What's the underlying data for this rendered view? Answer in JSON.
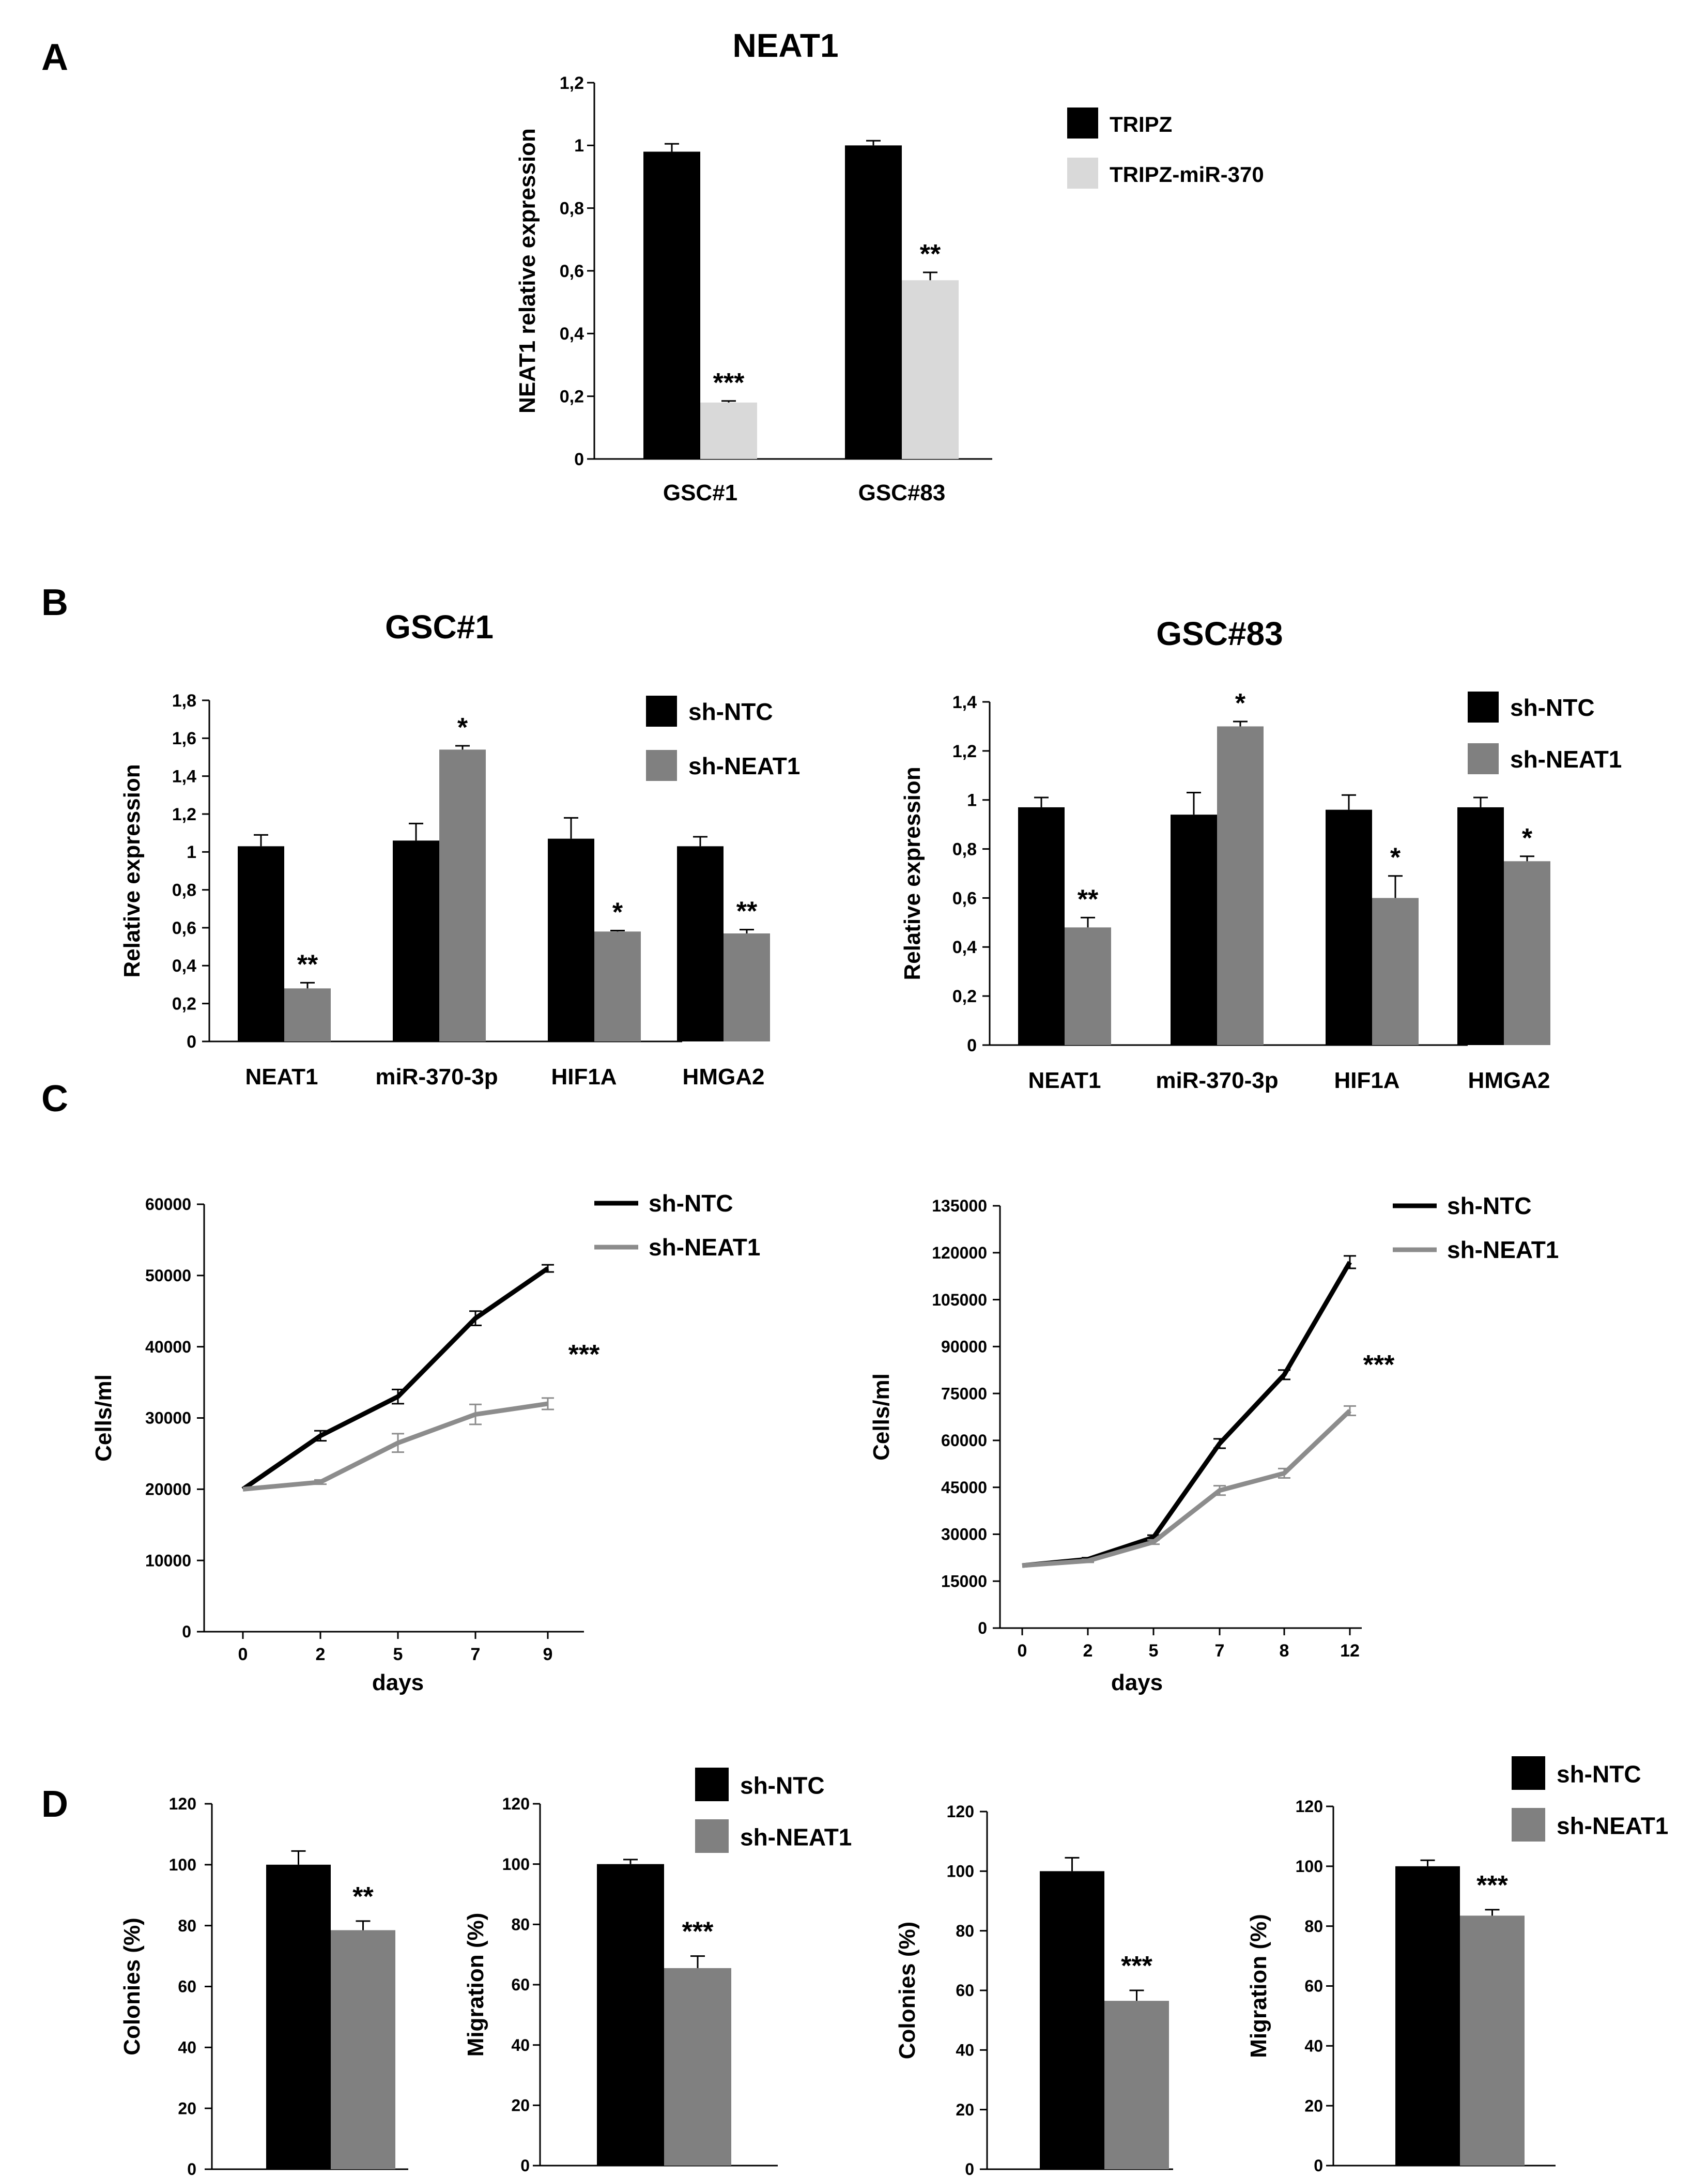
{
  "panel_labels": [
    "A",
    "B",
    "C",
    "D"
  ],
  "colors": {
    "black": "#000000",
    "light_gray": "#d9d9d9",
    "mid_gray": "#808080",
    "line_gray": "#8c8c8c"
  },
  "chart_data": [
    {
      "id": "A",
      "type": "bar",
      "title": "NEAT1",
      "ylabel": "NEAT1 relative expression",
      "xlabel": "",
      "ylim": [
        0,
        1.2
      ],
      "ytick_labels": [
        "0",
        "0,2",
        "0,4",
        "0,6",
        "0,8",
        "1",
        "1,2"
      ],
      "categories": [
        "GSC#1",
        "GSC#83"
      ],
      "series": [
        {
          "name": "TRIPZ",
          "color": "#000000",
          "values": [
            0.98,
            1.0
          ],
          "errors": [
            0.025,
            0.015
          ]
        },
        {
          "name": "TRIPZ-miR-370",
          "color": "#d9d9d9",
          "values": [
            0.18,
            0.57
          ],
          "errors": [
            0.005,
            0.025
          ]
        }
      ],
      "annotations": [
        {
          "category": 0,
          "series": 1,
          "text": "***"
        },
        {
          "category": 1,
          "series": 1,
          "text": "**"
        }
      ]
    },
    {
      "id": "B1",
      "type": "bar",
      "title": "GSC#1",
      "ylabel": "Relative expression",
      "xlabel": "",
      "ylim": [
        0,
        1.8
      ],
      "ytick_labels": [
        "0",
        "0,2",
        "0,4",
        "0,6",
        "0,8",
        "1",
        "1,2",
        "1,4",
        "1,6",
        "1,8"
      ],
      "categories": [
        "NEAT1",
        "miR-370-3p",
        "HIF1A",
        "HMGA2"
      ],
      "series": [
        {
          "name": "sh-NTC",
          "color": "#000000",
          "values": [
            1.03,
            1.06,
            1.07,
            1.03
          ],
          "errors": [
            0.06,
            0.09,
            0.11,
            0.05
          ]
        },
        {
          "name": "sh-NEAT1",
          "color": "#808080",
          "values": [
            0.28,
            1.54,
            0.58,
            0.57
          ],
          "errors": [
            0.03,
            0.02,
            0.005,
            0.02
          ]
        }
      ],
      "annotations": [
        {
          "category": 0,
          "series": 1,
          "text": "**"
        },
        {
          "category": 1,
          "series": 1,
          "text": "*"
        },
        {
          "category": 2,
          "series": 1,
          "text": "*"
        },
        {
          "category": 3,
          "series": 1,
          "text": "**"
        }
      ]
    },
    {
      "id": "B2",
      "type": "bar",
      "title": "GSC#83",
      "ylabel": "Relative expression",
      "xlabel": "",
      "ylim": [
        0,
        1.4
      ],
      "ytick_labels": [
        "0",
        "0,2",
        "0,4",
        "0,6",
        "0,8",
        "1",
        "1,2",
        "1,4"
      ],
      "categories": [
        "NEAT1",
        "miR-370-3p",
        "HIF1A",
        "HMGA2"
      ],
      "series": [
        {
          "name": "sh-NTC",
          "color": "#000000",
          "values": [
            0.97,
            0.94,
            0.96,
            0.97
          ],
          "errors": [
            0.04,
            0.09,
            0.06,
            0.04
          ]
        },
        {
          "name": "sh-NEAT1",
          "color": "#808080",
          "values": [
            0.48,
            1.3,
            0.6,
            0.75
          ],
          "errors": [
            0.04,
            0.02,
            0.09,
            0.02
          ]
        }
      ],
      "annotations": [
        {
          "category": 0,
          "series": 1,
          "text": "**"
        },
        {
          "category": 1,
          "series": 1,
          "text": "*"
        },
        {
          "category": 2,
          "series": 1,
          "text": "*"
        },
        {
          "category": 3,
          "series": 1,
          "text": "*"
        }
      ]
    },
    {
      "id": "C1",
      "type": "line",
      "title": "",
      "xlabel": "days",
      "ylabel": "Cells/ml",
      "ylim": [
        0,
        60000
      ],
      "ytick_labels": [
        "0",
        "10000",
        "20000",
        "30000",
        "40000",
        "50000",
        "60000"
      ],
      "categories": [
        "0",
        "2",
        "5",
        "7",
        "9"
      ],
      "series": [
        {
          "name": "sh-NTC",
          "color": "#000000",
          "values": [
            20000,
            27500,
            33000,
            44000,
            51000
          ],
          "errors": [
            0,
            700,
            1000,
            1000,
            500
          ]
        },
        {
          "name": "sh-NEAT1",
          "color": "#8c8c8c",
          "values": [
            20000,
            21000,
            26500,
            30500,
            32000
          ],
          "errors": [
            0,
            300,
            1300,
            1400,
            800
          ]
        }
      ],
      "annotation": "***"
    },
    {
      "id": "C2",
      "type": "line",
      "title": "",
      "xlabel": "days",
      "ylabel": "Cells/ml",
      "ylim": [
        0,
        135000
      ],
      "ytick_labels": [
        "0",
        "15000",
        "30000",
        "45000",
        "60000",
        "75000",
        "90000",
        "105000",
        "120000",
        "135000"
      ],
      "categories": [
        "0",
        "2",
        "5",
        "7",
        "8",
        "12"
      ],
      "series": [
        {
          "name": "sh-NTC",
          "color": "#000000",
          "values": [
            20000,
            22000,
            29000,
            59000,
            81000,
            117000
          ],
          "errors": [
            0,
            500,
            700,
            1500,
            1500,
            2000
          ]
        },
        {
          "name": "sh-NEAT1",
          "color": "#8c8c8c",
          "values": [
            20000,
            21500,
            27500,
            44000,
            49500,
            69500
          ],
          "errors": [
            0,
            500,
            700,
            1500,
            1500,
            1500
          ]
        }
      ],
      "annotation": "***"
    },
    {
      "id": "D1",
      "type": "bar",
      "title": "",
      "ylabel": "Colonies (%)",
      "ylim": [
        0,
        120
      ],
      "ytick_labels": [
        "0",
        "20",
        "40",
        "60",
        "80",
        "100",
        "120"
      ],
      "series": [
        {
          "name": "sh-NTC",
          "color": "#000000",
          "values": [
            100
          ],
          "errors": [
            4.5
          ]
        },
        {
          "name": "sh-NEAT1",
          "color": "#808080",
          "values": [
            78.5
          ],
          "errors": [
            3
          ]
        }
      ],
      "annotation": "**"
    },
    {
      "id": "D2",
      "type": "bar",
      "title": "",
      "ylabel": "Migration (%)",
      "ylim": [
        0,
        120
      ],
      "ytick_labels": [
        "0",
        "20",
        "40",
        "60",
        "80",
        "100",
        "120"
      ],
      "series": [
        {
          "name": "sh-NTC",
          "color": "#000000",
          "values": [
            100
          ],
          "errors": [
            1.5
          ]
        },
        {
          "name": "sh-NEAT1",
          "color": "#808080",
          "values": [
            65.5
          ],
          "errors": [
            4
          ]
        }
      ],
      "annotation": "***",
      "legend": [
        "sh-NTC",
        "sh-NEAT1"
      ]
    },
    {
      "id": "D3",
      "type": "bar",
      "title": "",
      "ylabel": "Colonies (%)",
      "ylim": [
        0,
        120
      ],
      "ytick_labels": [
        "0",
        "20",
        "40",
        "60",
        "80",
        "100",
        "120"
      ],
      "series": [
        {
          "name": "sh-NTC",
          "color": "#000000",
          "values": [
            100
          ],
          "errors": [
            4.5
          ]
        },
        {
          "name": "sh-NEAT1",
          "color": "#808080",
          "values": [
            56.5
          ],
          "errors": [
            3.5
          ]
        }
      ],
      "annotation": "***"
    },
    {
      "id": "D4",
      "type": "bar",
      "title": "",
      "ylabel": "Migration (%)",
      "ylim": [
        0,
        120
      ],
      "ytick_labels": [
        "0",
        "20",
        "40",
        "60",
        "80",
        "100",
        "120"
      ],
      "series": [
        {
          "name": "sh-NTC",
          "color": "#000000",
          "values": [
            100
          ],
          "errors": [
            2
          ]
        },
        {
          "name": "sh-NEAT1",
          "color": "#808080",
          "values": [
            83.5
          ],
          "errors": [
            2
          ]
        }
      ],
      "annotation": "***",
      "legend": [
        "sh-NTC",
        "sh-NEAT1"
      ]
    }
  ]
}
